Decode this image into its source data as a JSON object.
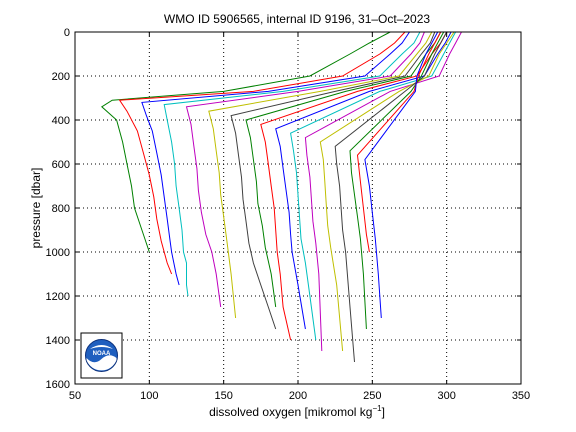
{
  "chart_data": {
    "type": "line",
    "title": "WMO ID 5906565, internal ID 9196, 31–Oct–2023",
    "xlabel": "dissolved oxygen [mikromol kg",
    "xlabel_sup": "−1",
    "xlabel_end": "]",
    "ylabel": "pressure [dbar]",
    "xlim": [
      50,
      350
    ],
    "ylim": [
      1600,
      0
    ],
    "y_reversed": true,
    "grid": true,
    "grid_style": "dotted",
    "xticks": [
      "50",
      "100",
      "150",
      "200",
      "250",
      "300",
      "350"
    ],
    "yticks": [
      "0",
      "200",
      "400",
      "600",
      "800",
      "1000",
      "1200",
      "1400",
      "1600"
    ],
    "logo": {
      "text": "NOAA",
      "placement": "bottom-left"
    },
    "series": [
      {
        "color": "#008000",
        "x": [
          262,
          248,
          235,
          208,
          150,
          75,
          68,
          78,
          82,
          85,
          88,
          90,
          95,
          100
        ],
        "y": [
          0,
          50,
          100,
          200,
          270,
          310,
          340,
          400,
          500,
          600,
          700,
          800,
          900,
          1000
        ]
      },
      {
        "color": "#ff0000",
        "x": [
          272,
          265,
          255,
          230,
          170,
          80,
          85,
          92,
          96,
          100,
          103,
          105,
          108,
          110,
          112,
          115
        ],
        "y": [
          0,
          50,
          100,
          200,
          270,
          310,
          360,
          450,
          550,
          650,
          750,
          850,
          950,
          1000,
          1050,
          1100
        ]
      },
      {
        "color": "#0000ff",
        "x": [
          275,
          270,
          262,
          245,
          180,
          95,
          98,
          102,
          105,
          108,
          110,
          112,
          114,
          115,
          118,
          120
        ],
        "y": [
          0,
          50,
          100,
          200,
          270,
          320,
          380,
          450,
          550,
          650,
          750,
          850,
          950,
          1000,
          1100,
          1150
        ]
      },
      {
        "color": "#00bfbf",
        "x": [
          282,
          278,
          270,
          255,
          190,
          110,
          112,
          115,
          117,
          118,
          120,
          122,
          123,
          125,
          125,
          126
        ],
        "y": [
          0,
          50,
          100,
          200,
          270,
          330,
          400,
          500,
          600,
          700,
          800,
          900,
          1000,
          1050,
          1150,
          1200
        ]
      },
      {
        "color": "#bf00bf",
        "x": [
          285,
          282,
          276,
          262,
          200,
          125,
          128,
          130,
          132,
          133,
          135,
          138,
          142,
          145,
          148
        ],
        "y": [
          0,
          50,
          100,
          200,
          270,
          340,
          420,
          520,
          620,
          720,
          820,
          920,
          1000,
          1100,
          1250
        ]
      },
      {
        "color": "#bfbf00",
        "x": [
          290,
          286,
          280,
          268,
          215,
          140,
          143,
          145,
          147,
          148,
          150,
          152,
          155,
          158
        ],
        "y": [
          0,
          50,
          100,
          200,
          270,
          360,
          440,
          540,
          640,
          740,
          840,
          940,
          1100,
          1300
        ]
      },
      {
        "color": "#404040",
        "x": [
          292,
          289,
          283,
          272,
          225,
          155,
          158,
          160,
          162,
          163,
          165,
          167,
          170,
          175,
          180,
          185
        ],
        "y": [
          0,
          50,
          100,
          200,
          270,
          380,
          460,
          560,
          660,
          760,
          860,
          960,
          1050,
          1150,
          1250,
          1350
        ]
      },
      {
        "color": "#008000",
        "x": [
          296,
          292,
          286,
          276,
          232,
          165,
          168,
          170,
          172,
          173,
          176,
          178,
          182,
          185
        ],
        "y": [
          0,
          50,
          100,
          200,
          270,
          400,
          480,
          580,
          680,
          780,
          880,
          980,
          1100,
          1250
        ]
      },
      {
        "color": "#ff0000",
        "x": [
          300,
          296,
          290,
          280,
          240,
          175,
          178,
          180,
          182,
          184,
          185,
          186,
          188,
          190,
          195
        ],
        "y": [
          0,
          50,
          100,
          200,
          270,
          420,
          500,
          600,
          700,
          800,
          900,
          1000,
          1100,
          1250,
          1400
        ]
      },
      {
        "color": "#0000ff",
        "x": [
          303,
          299,
          294,
          285,
          248,
          185,
          188,
          190,
          192,
          194,
          195,
          196,
          200,
          205
        ],
        "y": [
          0,
          50,
          100,
          200,
          270,
          440,
          520,
          620,
          720,
          820,
          920,
          1000,
          1150,
          1350
        ]
      },
      {
        "color": "#00bfbf",
        "x": [
          306,
          302,
          298,
          290,
          255,
          195,
          197,
          199,
          200,
          201,
          202,
          205,
          208,
          212
        ],
        "y": [
          0,
          50,
          100,
          200,
          270,
          460,
          540,
          640,
          740,
          840,
          940,
          1050,
          1200,
          1400
        ]
      },
      {
        "color": "#bf00bf",
        "x": [
          310,
          306,
          302,
          295,
          262,
          205,
          206,
          208,
          209,
          210,
          212,
          214,
          216
        ],
        "y": [
          0,
          50,
          100,
          200,
          270,
          480,
          560,
          660,
          760,
          860,
          960,
          1100,
          1450
        ]
      },
      {
        "color": "#bfbf00",
        "x": [
          305,
          300,
          295,
          288,
          268,
          215,
          217,
          218,
          219,
          220,
          222,
          226,
          230
        ],
        "y": [
          0,
          50,
          100,
          200,
          270,
          500,
          580,
          680,
          780,
          880,
          980,
          1150,
          1450
        ]
      },
      {
        "color": "#404040",
        "x": [
          300,
          296,
          292,
          285,
          272,
          225,
          226,
          228,
          229,
          230,
          232,
          235,
          238
        ],
        "y": [
          0,
          50,
          100,
          200,
          270,
          520,
          600,
          700,
          800,
          900,
          1000,
          1250,
          1500
        ]
      },
      {
        "color": "#008000",
        "x": [
          298,
          294,
          290,
          283,
          276,
          235,
          236,
          238,
          240,
          242,
          244,
          246
        ],
        "y": [
          0,
          50,
          100,
          200,
          270,
          540,
          640,
          740,
          840,
          940,
          1100,
          1350
        ]
      },
      {
        "color": "#ff0000",
        "x": [
          296,
          292,
          288,
          281,
          278,
          240,
          242,
          244,
          246,
          248
        ],
        "y": [
          0,
          50,
          100,
          200,
          270,
          560,
          680,
          800,
          920,
          1000
        ]
      },
      {
        "color": "#0000ff",
        "x": [
          294,
          290,
          286,
          280,
          279,
          245,
          248,
          250,
          252,
          254,
          256
        ],
        "y": [
          0,
          50,
          100,
          200,
          270,
          580,
          700,
          820,
          940,
          1100,
          1300
        ]
      }
    ]
  }
}
